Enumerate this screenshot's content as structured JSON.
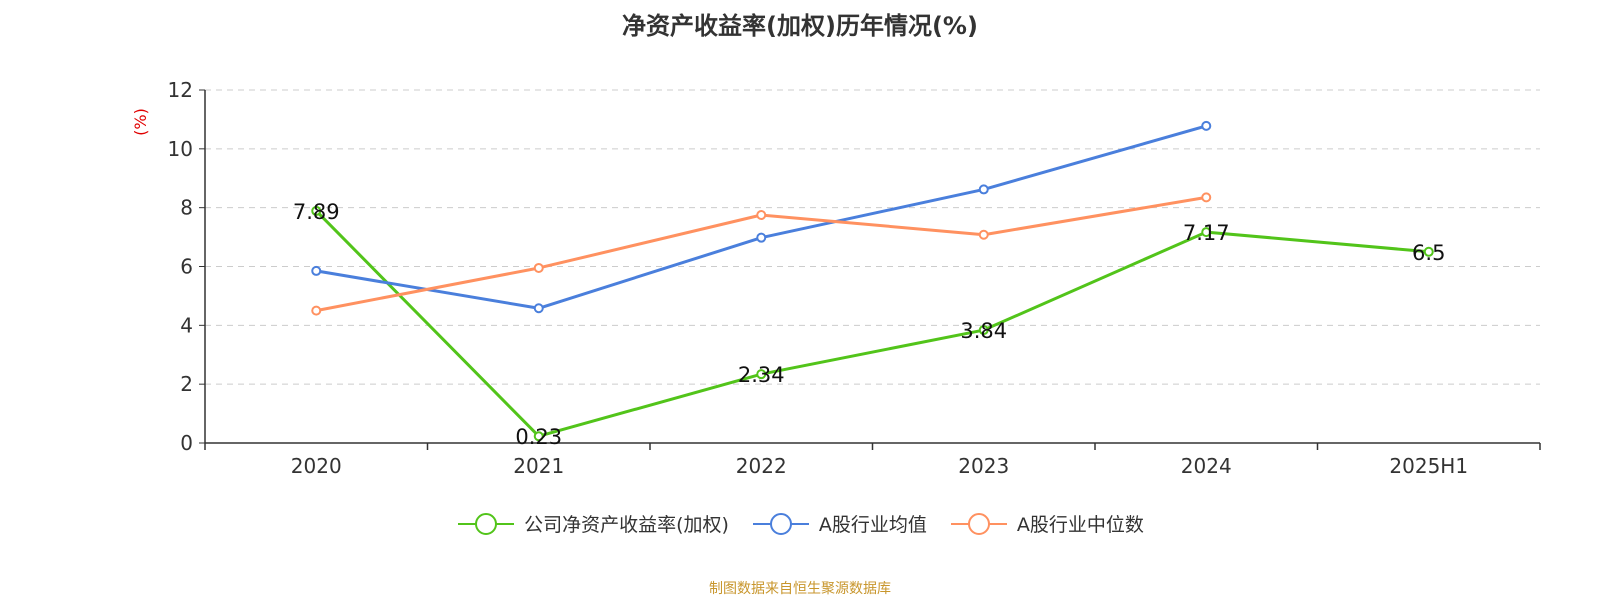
{
  "title": "净资产收益率(加权)历年情况(%)",
  "source_note": "制图数据来自恒生聚源数据库",
  "chart_data": {
    "type": "line",
    "title": "净资产收益率(加权)历年情况(%)",
    "ylabel": "(%)",
    "xlabel": "",
    "categories": [
      "2020",
      "2021",
      "2022",
      "2023",
      "2024",
      "2025H1"
    ],
    "ylim": [
      0,
      12
    ],
    "yticks": [
      0,
      2,
      4,
      6,
      8,
      10,
      12
    ],
    "grid": true,
    "legend_position": "bottom",
    "series": [
      {
        "name": "公司净资产收益率(加权)",
        "color": "#52c41a",
        "values": [
          7.89,
          0.23,
          2.34,
          3.84,
          7.17,
          6.5
        ],
        "labels": [
          "7.89",
          "0.23",
          "2.34",
          "3.84",
          "7.17",
          "6.5"
        ]
      },
      {
        "name": "A股行业均值",
        "color": "#4a7fdc",
        "values": [
          5.85,
          4.58,
          6.98,
          8.62,
          10.78,
          null
        ]
      },
      {
        "name": "A股行业中位数",
        "color": "#ff9160",
        "values": [
          4.5,
          5.95,
          7.75,
          7.08,
          8.35,
          null
        ]
      }
    ]
  },
  "colors": {
    "ylabel": "#e00000",
    "axis": "#333333",
    "grid": "#cccccc",
    "source": "#c8962c"
  }
}
